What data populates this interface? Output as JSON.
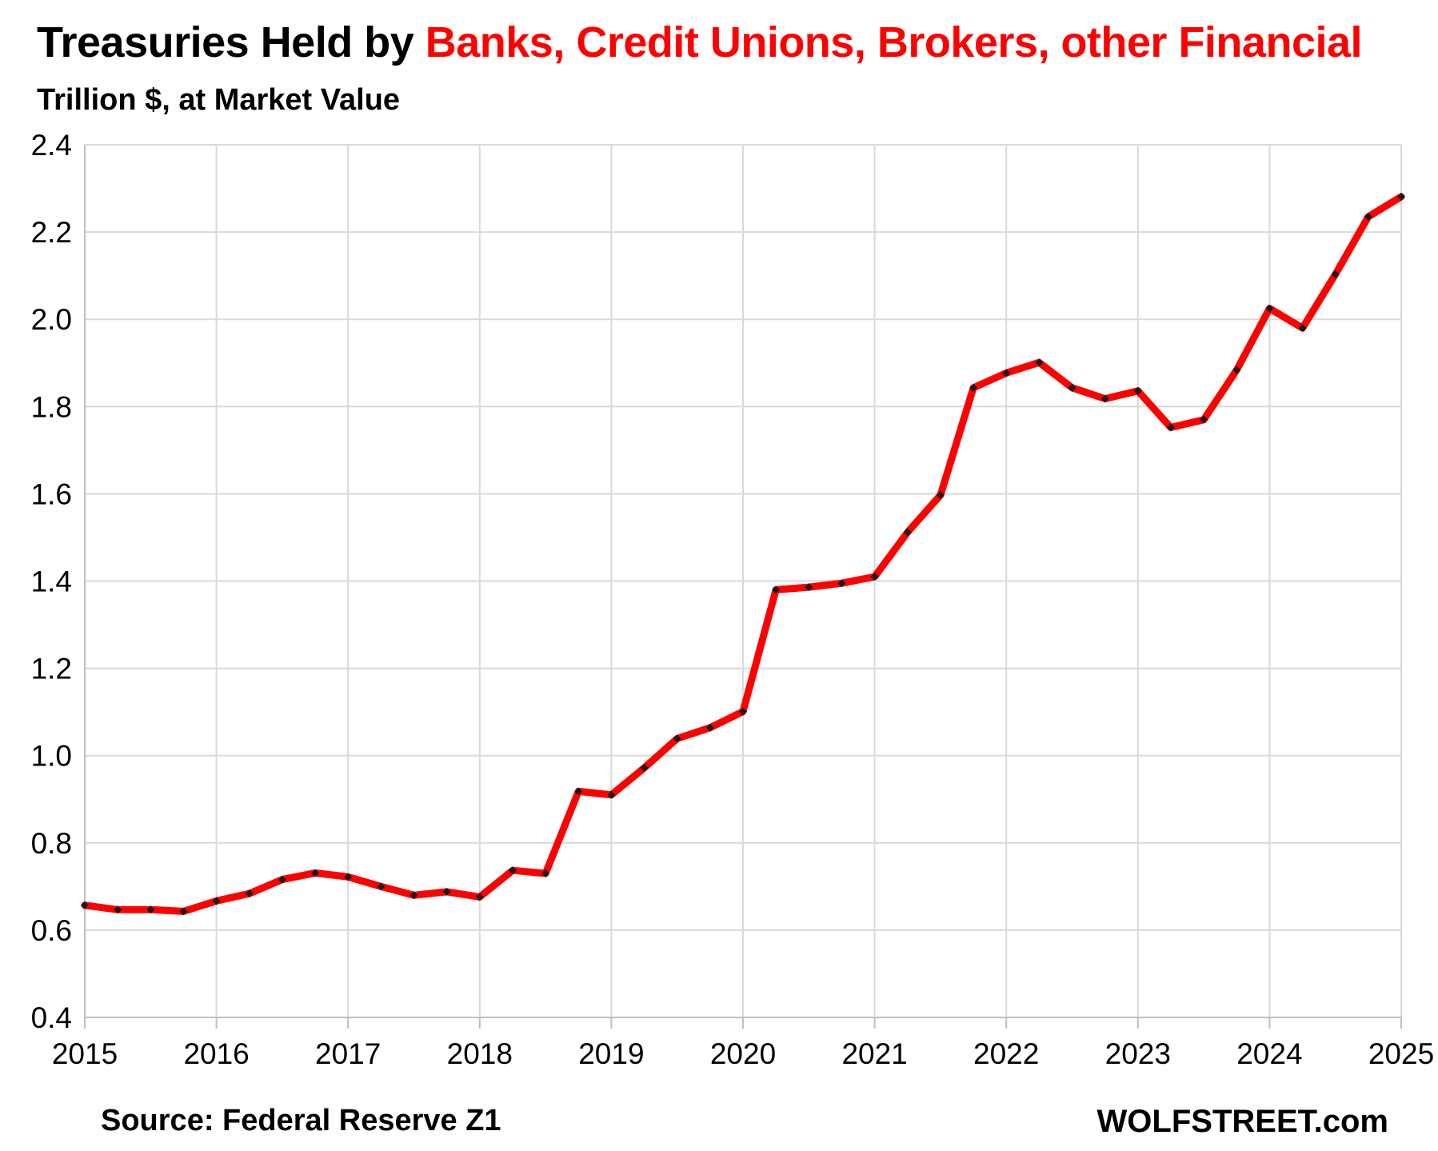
{
  "header": {
    "title_prefix": "Treasuries Held by ",
    "title_highlight": "Banks, Credit Unions, Brokers, other Financial",
    "subtitle": "Trillion $, at Market Value"
  },
  "footer": {
    "source": "Source: Federal Reserve Z1",
    "brand": "WOLFSTREET.com"
  },
  "colors": {
    "line": "#ff0000",
    "marker": "#1a1a1a",
    "grid": "#d9d9d9",
    "title_accent": "#ff0000"
  },
  "chart_data": {
    "type": "line",
    "title": "Treasuries Held by Banks, Credit Unions, Brokers, other Financial",
    "subtitle": "Trillion $, at Market Value",
    "xlabel": "",
    "ylabel": "",
    "xlim": [
      2015,
      2025
    ],
    "ylim": [
      0.4,
      2.4
    ],
    "grid": true,
    "legend": "none",
    "x_ticks": [
      "2015",
      "2016",
      "2017",
      "2018",
      "2019",
      "2020",
      "2021",
      "2022",
      "2023",
      "2024",
      "2025"
    ],
    "y_ticks": [
      "0.4",
      "0.6",
      "0.8",
      "1.0",
      "1.2",
      "1.4",
      "1.6",
      "1.8",
      "2.0",
      "2.2",
      "2.4"
    ],
    "series": [
      {
        "x": [
          2015.0,
          2015.25,
          2015.5,
          2015.75,
          2016.0,
          2016.25,
          2016.5,
          2016.75,
          2017.0,
          2017.25,
          2017.5,
          2017.75,
          2018.0,
          2018.25,
          2018.5,
          2018.75,
          2019.0,
          2019.25,
          2019.5,
          2019.75,
          2020.0,
          2020.25,
          2020.5,
          2020.75,
          2021.0,
          2021.25,
          2021.5,
          2021.75,
          2022.0,
          2022.25,
          2022.5,
          2022.75,
          2023.0,
          2023.25,
          2023.5,
          2023.75,
          2024.0,
          2024.25,
          2024.5,
          2024.75,
          2025.0
        ],
        "values": [
          0.657,
          0.647,
          0.647,
          0.643,
          0.667,
          0.684,
          0.716,
          0.731,
          0.722,
          0.7,
          0.68,
          0.688,
          0.676,
          0.737,
          0.73,
          0.918,
          0.91,
          0.972,
          1.039,
          1.064,
          1.101,
          1.38,
          1.386,
          1.395,
          1.41,
          1.512,
          1.597,
          1.843,
          1.877,
          1.901,
          1.843,
          1.818,
          1.836,
          1.752,
          1.77,
          1.884,
          2.025,
          1.98,
          2.103,
          2.235,
          2.281
        ]
      }
    ]
  }
}
